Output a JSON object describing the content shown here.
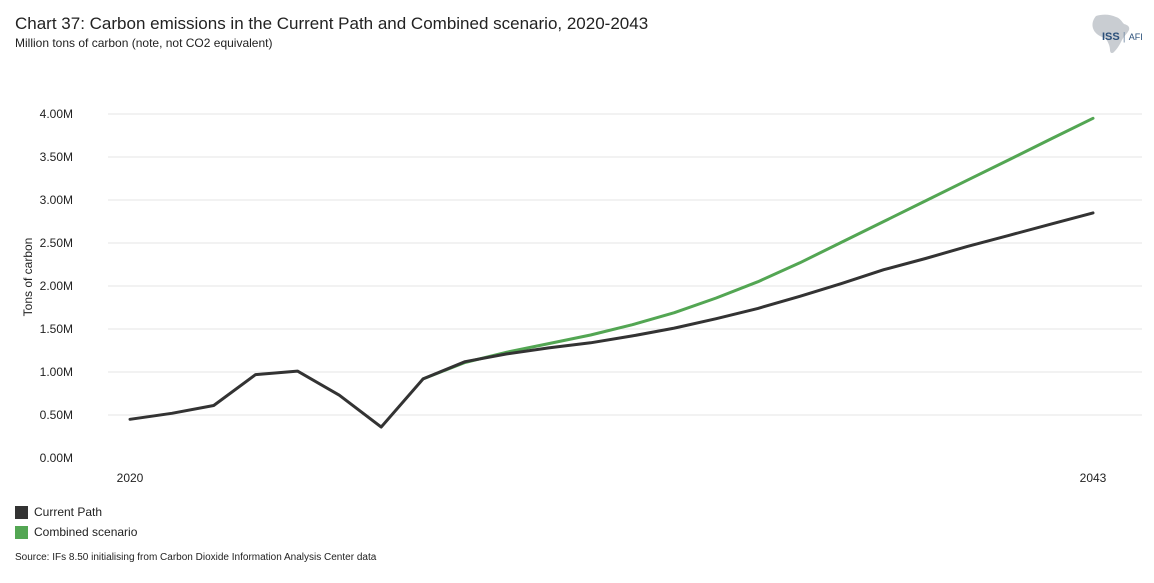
{
  "header": {
    "title": "Chart 37: Carbon emissions in the Current Path and Combined scenario, 2020-2043",
    "subtitle": "Million tons of carbon (note, not CO2 equivalent)"
  },
  "logo": {
    "left_text": "ISS",
    "right_text": "AFI"
  },
  "source": "Source: IFs 8.50 initialising from Carbon Dioxide Information Analysis Center data",
  "colors": {
    "current_path": "#333333",
    "combined": "#53a653",
    "grid": "#e6e6e6"
  },
  "chart_data": {
    "type": "line",
    "title": "Chart 37: Carbon emissions in the Current Path and Combined scenario, 2020-2043",
    "xlabel": "",
    "ylabel": "Tons of carbon",
    "x": [
      2020,
      2021,
      2022,
      2023,
      2024,
      2025,
      2026,
      2027,
      2028,
      2029,
      2030,
      2031,
      2032,
      2033,
      2034,
      2035,
      2036,
      2037,
      2038,
      2039,
      2040,
      2041,
      2042,
      2043
    ],
    "xtick_labels": [
      "2020",
      "2043"
    ],
    "ylim": [
      0,
      4000000
    ],
    "ytick_values": [
      0,
      500000,
      1000000,
      1500000,
      2000000,
      2500000,
      3000000,
      3500000,
      4000000
    ],
    "ytick_labels": [
      "0.00M",
      "0.50M",
      "1.00M",
      "1.50M",
      "2.00M",
      "2.50M",
      "3.00M",
      "3.50M",
      "4.00M"
    ],
    "series": [
      {
        "name": "Current Path",
        "color": "#333333",
        "values": [
          450000,
          520000,
          610000,
          970000,
          1010000,
          730000,
          360000,
          920000,
          1120000,
          1210000,
          1280000,
          1340000,
          1420000,
          1510000,
          1620000,
          1740000,
          1880000,
          2030000,
          2190000,
          2320000,
          2460000,
          2590000,
          2720000,
          2850000
        ]
      },
      {
        "name": "Combined scenario",
        "color": "#53a653",
        "values": [
          null,
          null,
          null,
          null,
          null,
          null,
          null,
          920000,
          1110000,
          1230000,
          1330000,
          1430000,
          1550000,
          1690000,
          1860000,
          2050000,
          2270000,
          2510000,
          2750000,
          2990000,
          3230000,
          3470000,
          3710000,
          3950000
        ]
      }
    ],
    "legend": [
      "Current Path",
      "Combined scenario"
    ],
    "legend_position": "bottom-left",
    "grid": true
  }
}
